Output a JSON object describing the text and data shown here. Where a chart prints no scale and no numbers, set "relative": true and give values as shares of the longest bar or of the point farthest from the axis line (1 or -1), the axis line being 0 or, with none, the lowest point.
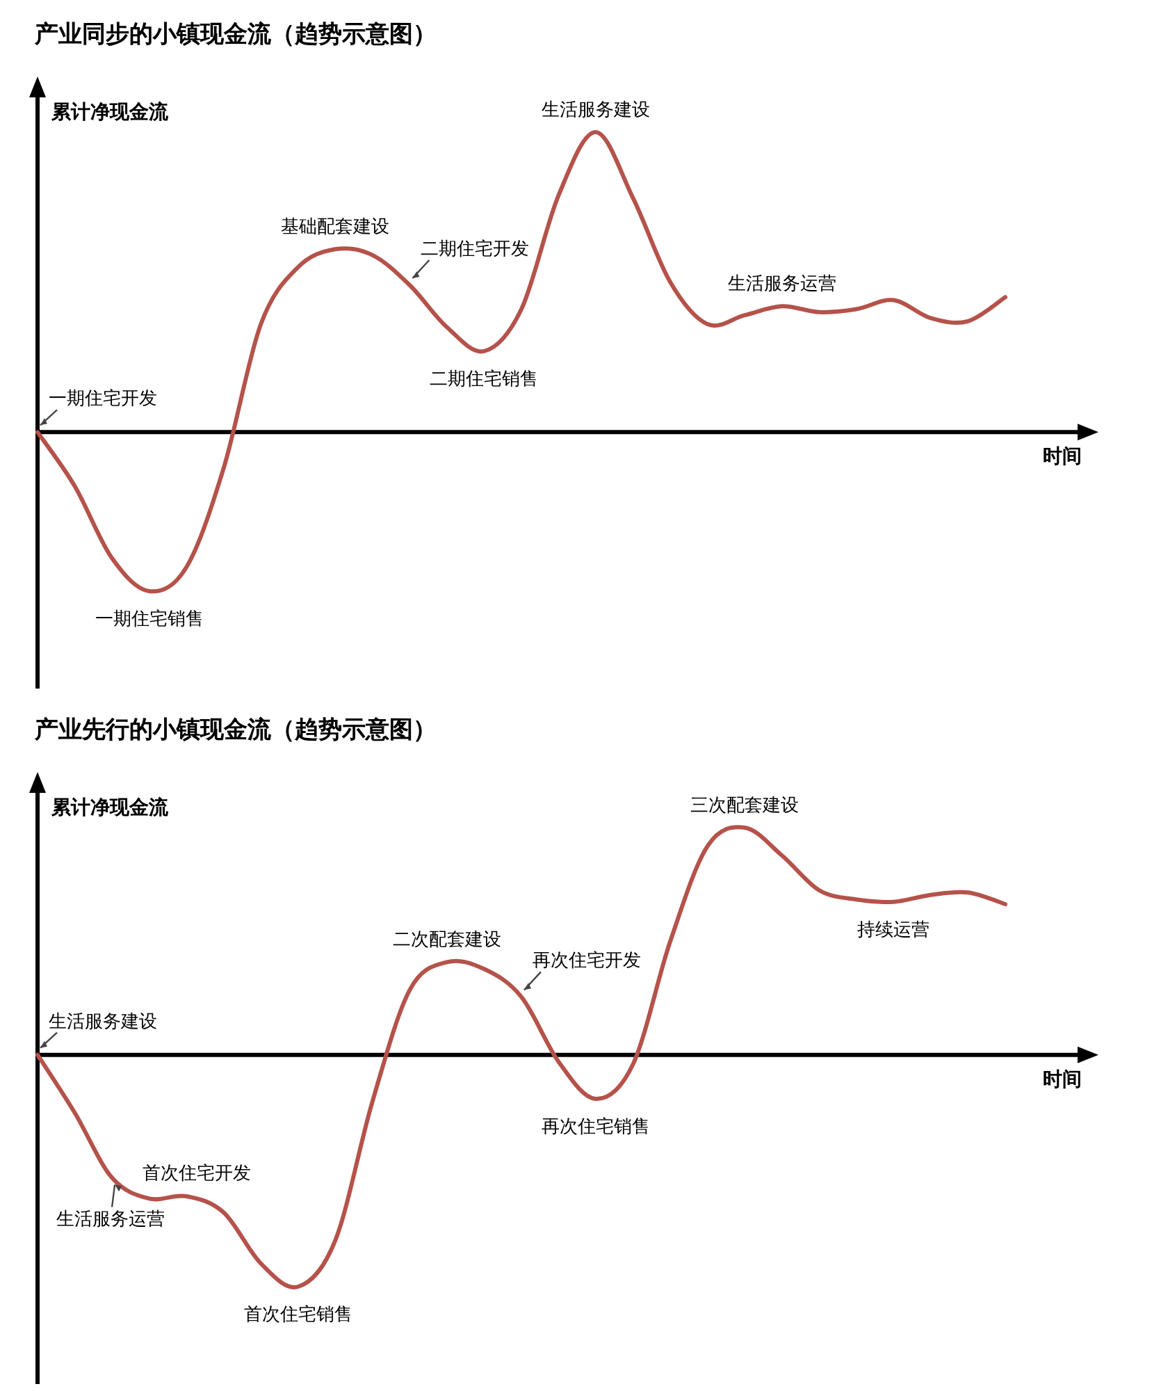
{
  "chart_data": [
    {
      "type": "line",
      "title": "产业同步的小镇现金流（趋势示意图）",
      "xlabel": "时间",
      "ylabel": "累计净现金流",
      "relative": true,
      "categories": [
        null,
        null,
        null,
        null,
        null,
        null,
        null,
        null,
        null,
        null,
        null,
        null,
        null,
        null,
        null,
        null,
        null,
        null,
        null,
        null,
        null,
        null,
        null,
        null,
        null,
        null,
        null
      ],
      "series": [
        {
          "color": "#b5524a",
          "values": [
            0,
            -0.18,
            -0.42,
            -0.53,
            -0.45,
            -0.12,
            0.36,
            0.55,
            0.61,
            0.59,
            0.49,
            0.35,
            0.27,
            0.41,
            0.79,
            1,
            0.78,
            0.5,
            0.36,
            0.39,
            0.42,
            0.4,
            0.41,
            0.44,
            0.38,
            0.37,
            0.45
          ]
        }
      ],
      "annotations": [
        "一期住宅开发",
        {
          "text": "一期住宅销售",
          "y": -0.53
        },
        {
          "text": "基础配套建设",
          "y": 0.61
        },
        "二期住宅开发",
        {
          "text": "二期住宅销售",
          "y": 0.27
        },
        {
          "text": "生活服务建设",
          "y": 1
        },
        {
          "text": "生活服务运营",
          "y": 0.42
        }
      ]
    },
    {
      "type": "line",
      "title": "产业先行的小镇现金流（趋势示意图）",
      "xlabel": "时间",
      "ylabel": "累计净现金流",
      "relative": true,
      "categories": [
        null,
        null,
        null,
        null,
        null,
        null,
        null,
        null,
        null,
        null,
        null,
        null,
        null,
        null,
        null,
        null,
        null,
        null,
        null,
        null,
        null,
        null,
        null,
        null,
        null,
        null,
        null
      ],
      "series": [
        {
          "color": "#b5524a",
          "values": [
            0,
            -0.25,
            -0.53,
            -0.62,
            -0.61,
            -0.68,
            -0.9,
            -1,
            -0.8,
            -0.2,
            0.28,
            0.4,
            0.37,
            0.25,
            -0.03,
            -0.19,
            -0.04,
            0.49,
            0.9,
            0.98,
            0.86,
            0.71,
            0.67,
            0.66,
            0.69,
            0.7,
            0.65
          ]
        }
      ],
      "annotations": [
        "生活服务建设",
        "生活服务运营",
        "首次住宅开发",
        {
          "text": "首次住宅销售",
          "y": -1
        },
        {
          "text": "二次配套建设",
          "y": 0.4
        },
        "再次住宅开发",
        {
          "text": "再次住宅销售",
          "y": -0.19
        },
        {
          "text": "三次配套建设",
          "y": 0.98
        },
        {
          "text": "持续运营",
          "y": 0.66
        }
      ]
    }
  ]
}
